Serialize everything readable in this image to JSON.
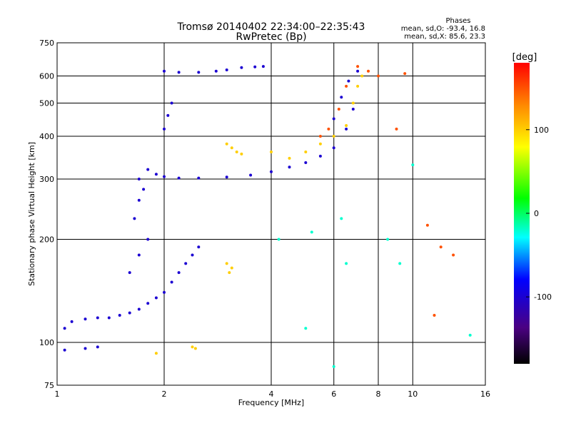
{
  "chart_data": {
    "type": "scatter",
    "title": "Tromsø 20140402 22:34:00–22:35:43",
    "subtitle": "RwPretec (Bp)",
    "xlabel": "Frequency [MHz]",
    "ylabel": "Stationary phase Virtual Height [km]",
    "x_scale": "log",
    "y_scale": "log",
    "xlim": [
      1,
      16
    ],
    "ylim": [
      75,
      750
    ],
    "x_ticks": [
      1,
      2,
      4,
      6,
      8,
      10,
      16
    ],
    "x_tick_labels": [
      "1",
      "2",
      "4",
      "6",
      "8",
      "10",
      "16"
    ],
    "y_ticks": [
      75,
      100,
      200,
      300,
      400,
      500,
      600,
      750
    ],
    "y_tick_labels": [
      "75",
      "100",
      "200",
      "300",
      "400",
      "500",
      "600",
      "750"
    ],
    "grid": true,
    "phases_box": {
      "title": "Phases",
      "line_o": "mean, sd,O:  -93.4, 16.8",
      "line_x": "mean, sd,X:   85.6, 23.3"
    },
    "colorbar": {
      "label": "[deg]",
      "range": [
        -180,
        180
      ],
      "ticks": [
        100,
        0,
        -100
      ],
      "tick_labels": [
        "100",
        "0",
        "-100"
      ]
    },
    "traces": [
      {
        "name": "",
        "phase": -100,
        "points": [
          [
            1.05,
            95
          ],
          [
            1.2,
            96
          ],
          [
            1.3,
            97
          ],
          [
            1.05,
            110
          ],
          [
            1.1,
            115
          ],
          [
            1.2,
            117
          ],
          [
            1.3,
            118
          ],
          [
            1.4,
            118
          ],
          [
            1.5,
            120
          ],
          [
            1.6,
            122
          ],
          [
            1.7,
            125
          ],
          [
            1.8,
            130
          ],
          [
            1.9,
            135
          ],
          [
            2.0,
            140
          ],
          [
            2.1,
            150
          ],
          [
            2.2,
            160
          ],
          [
            2.3,
            170
          ],
          [
            2.4,
            180
          ],
          [
            2.5,
            190
          ],
          [
            1.6,
            160
          ],
          [
            1.7,
            180
          ],
          [
            1.8,
            200
          ],
          [
            1.65,
            230
          ],
          [
            1.7,
            260
          ],
          [
            1.75,
            280
          ],
          [
            1.7,
            300
          ],
          [
            1.8,
            320
          ],
          [
            1.9,
            310
          ],
          [
            2.0,
            305
          ],
          [
            2.2,
            302
          ],
          [
            2.5,
            302
          ],
          [
            3.0,
            304
          ],
          [
            3.5,
            308
          ],
          [
            4.0,
            315
          ],
          [
            4.5,
            325
          ],
          [
            5.0,
            335
          ],
          [
            5.5,
            350
          ],
          [
            6.0,
            370
          ],
          [
            6.5,
            420
          ],
          [
            6.8,
            480
          ]
        ]
      },
      {
        "name": "",
        "phase": -100,
        "points": [
          [
            2.0,
            620
          ],
          [
            2.2,
            615
          ],
          [
            2.5,
            615
          ],
          [
            2.8,
            620
          ],
          [
            3.0,
            625
          ],
          [
            3.3,
            635
          ],
          [
            3.6,
            638
          ],
          [
            3.8,
            640
          ],
          [
            2.0,
            420
          ],
          [
            2.05,
            460
          ],
          [
            2.1,
            500
          ],
          [
            6.0,
            450
          ],
          [
            6.3,
            520
          ],
          [
            6.6,
            580
          ],
          [
            7.0,
            620
          ]
        ]
      },
      {
        "name": "",
        "phase": 100,
        "points": [
          [
            3.0,
            380
          ],
          [
            3.1,
            370
          ],
          [
            3.2,
            360
          ],
          [
            3.3,
            355
          ],
          [
            4.0,
            360
          ],
          [
            4.5,
            345
          ],
          [
            5.0,
            360
          ],
          [
            5.5,
            380
          ],
          [
            6.0,
            400
          ],
          [
            6.5,
            430
          ],
          [
            6.8,
            500
          ],
          [
            7.0,
            560
          ],
          [
            7.2,
            600
          ],
          [
            3.0,
            170
          ],
          [
            3.1,
            165
          ],
          [
            3.05,
            160
          ],
          [
            2.4,
            97
          ],
          [
            2.45,
            96
          ],
          [
            1.9,
            93
          ]
        ]
      },
      {
        "name": "",
        "phase": 150,
        "points": [
          [
            5.5,
            400
          ],
          [
            5.8,
            420
          ],
          [
            6.2,
            480
          ],
          [
            6.5,
            560
          ],
          [
            7.0,
            640
          ],
          [
            7.5,
            620
          ],
          [
            8.0,
            600
          ],
          [
            9.0,
            420
          ],
          [
            9.5,
            610
          ],
          [
            11.0,
            220
          ],
          [
            12.0,
            190
          ],
          [
            13.0,
            180
          ],
          [
            11.5,
            120
          ]
        ]
      },
      {
        "name": "",
        "phase": -20,
        "points": [
          [
            4.2,
            200
          ],
          [
            5.2,
            210
          ],
          [
            6.3,
            230
          ],
          [
            6.5,
            170
          ],
          [
            8.5,
            200
          ],
          [
            9.2,
            170
          ],
          [
            10.0,
            330
          ],
          [
            14.5,
            105
          ],
          [
            6.0,
            85
          ],
          [
            5.0,
            110
          ]
        ]
      }
    ]
  }
}
